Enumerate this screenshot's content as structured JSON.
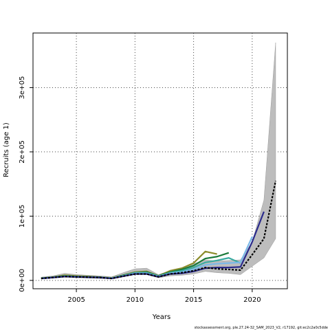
{
  "chart_data": {
    "type": "line",
    "xlabel": "Years",
    "ylabel": "Recruits (age 1)",
    "xlim": [
      2001.3,
      2023.0
    ],
    "ylim": [
      -13000,
      385000
    ],
    "x_ticks": [
      2005,
      2010,
      2015,
      2020
    ],
    "x_tick_labels": [
      "2005",
      "2010",
      "2015",
      "2020"
    ],
    "y_ticks": [
      0,
      100000,
      200000,
      300000
    ],
    "y_tick_labels": [
      "0e+00",
      "1e+05",
      "2e+05",
      "3e+05"
    ],
    "grid": true,
    "band": {
      "x": [
        2002,
        2003,
        2004,
        2005,
        2006,
        2007,
        2008,
        2009,
        2010,
        2011,
        2012,
        2013,
        2014,
        2015,
        2016,
        2017,
        2018,
        2019,
        2020,
        2021,
        2022
      ],
      "lower": [
        2000,
        3500,
        5000,
        4000,
        3500,
        3000,
        2500,
        6000,
        9000,
        9000,
        4000,
        7000,
        8000,
        10000,
        14000,
        12000,
        11000,
        9000,
        22000,
        35000,
        65000
      ],
      "upper": [
        5000,
        7000,
        11000,
        9000,
        8000,
        7000,
        5500,
        12000,
        18000,
        19000,
        9000,
        15000,
        19000,
        26000,
        32000,
        30000,
        31000,
        32000,
        60000,
        125000,
        370000
      ]
    },
    "series": [
      {
        "color": "#8b8b2a",
        "x": [
          2002,
          2003,
          2004,
          2005,
          2006,
          2007,
          2008,
          2009,
          2010,
          2011,
          2012,
          2013,
          2014,
          2015,
          2016,
          2017
        ],
        "values": [
          3500,
          5000,
          8000,
          7000,
          6000,
          5000,
          4000,
          8000,
          13000,
          14000,
          7000,
          15000,
          19000,
          27000,
          45000,
          41000
        ]
      },
      {
        "color": "#1a7a3a",
        "x": [
          2002,
          2003,
          2004,
          2005,
          2006,
          2007,
          2008,
          2009,
          2010,
          2011,
          2012,
          2013,
          2014,
          2015,
          2016,
          2017,
          2018
        ],
        "values": [
          3500,
          5000,
          7000,
          6000,
          5500,
          5000,
          3500,
          8000,
          12000,
          13000,
          7000,
          13000,
          17000,
          23000,
          34000,
          37000,
          43000
        ]
      },
      {
        "color": "#3aaaa0",
        "x": [
          2002,
          2003,
          2004,
          2005,
          2006,
          2007,
          2008,
          2009,
          2010,
          2011,
          2012,
          2013,
          2014,
          2015,
          2016,
          2017,
          2018,
          2019
        ],
        "values": [
          3000,
          4500,
          6500,
          6000,
          5000,
          4500,
          3500,
          7000,
          12000,
          12000,
          6500,
          12000,
          15000,
          20000,
          28000,
          31000,
          35000,
          27000
        ]
      },
      {
        "color": "#7ab8e8",
        "x": [
          2002,
          2003,
          2004,
          2005,
          2006,
          2007,
          2008,
          2009,
          2010,
          2011,
          2012,
          2013,
          2014,
          2015,
          2016,
          2017,
          2018,
          2019,
          2020
        ],
        "values": [
          3000,
          4500,
          6000,
          5500,
          5000,
          4500,
          3500,
          7000,
          11000,
          11000,
          6000,
          11000,
          13000,
          17000,
          24000,
          26000,
          27000,
          28000,
          68000
        ]
      },
      {
        "color": "#2a2a8c",
        "x": [
          2002,
          2003,
          2004,
          2005,
          2006,
          2007,
          2008,
          2009,
          2010,
          2011,
          2012,
          2013,
          2014,
          2015,
          2016,
          2017,
          2018,
          2019,
          2020,
          2021
        ],
        "values": [
          3000,
          4500,
          6000,
          5500,
          5000,
          4500,
          3000,
          6500,
          10000,
          10000,
          5500,
          10000,
          11000,
          14000,
          19000,
          20000,
          20000,
          21000,
          60000,
          107000
        ]
      },
      {
        "color": "#000000",
        "dashed": true,
        "x": [
          2002,
          2003,
          2004,
          2005,
          2006,
          2007,
          2008,
          2009,
          2010,
          2011,
          2012,
          2013,
          2014,
          2015,
          2016,
          2017,
          2018,
          2019,
          2020,
          2021,
          2022
        ],
        "values": [
          3000,
          4500,
          6000,
          5500,
          5000,
          4500,
          3000,
          6500,
          10000,
          10000,
          5500,
          10000,
          12000,
          15000,
          20000,
          18000,
          17000,
          16000,
          40000,
          65000,
          155000
        ]
      }
    ]
  },
  "footer": {
    "credit": "stockassessment.org, ple.27.24-32_SAM_2023_V2, r17192, git:ec2c2a0c5dde"
  }
}
